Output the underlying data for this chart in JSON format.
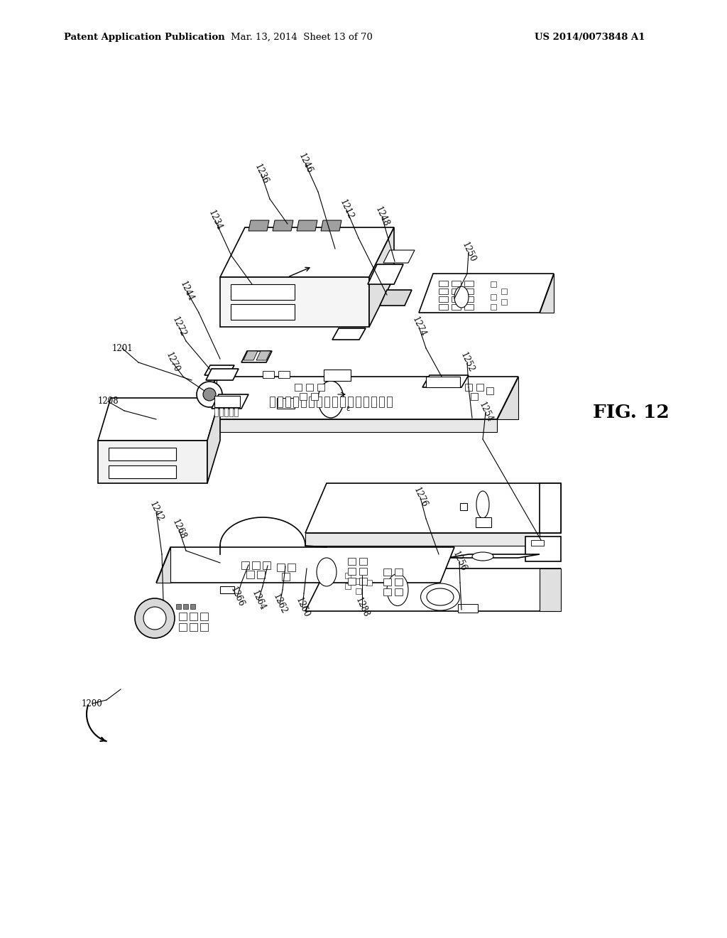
{
  "background_color": "#ffffff",
  "text_color": "#000000",
  "header_left": "Patent Application Publication",
  "header_center": "Mar. 13, 2014  Sheet 13 of 70",
  "header_right": "US 2014/0073848 A1",
  "fig_label": "FIG. 12",
  "header_fontsize": 9.5,
  "fig_label_fontsize": 19,
  "lw": 1.2
}
